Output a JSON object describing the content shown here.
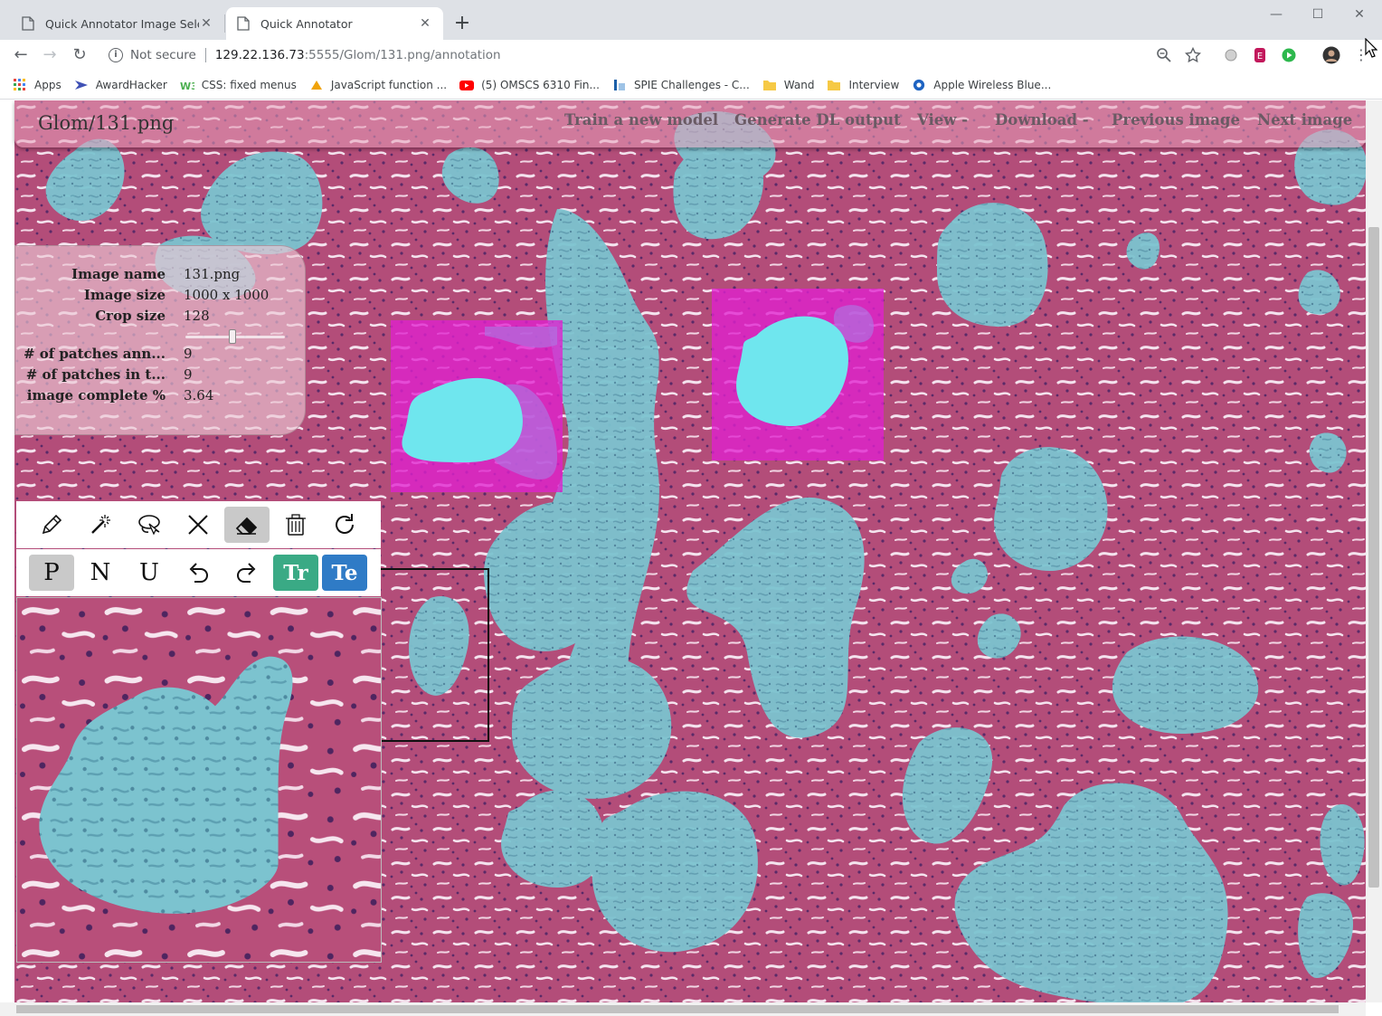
{
  "browser": {
    "tabs": [
      {
        "title": "Quick Annotator Image Selection",
        "active": false
      },
      {
        "title": "Quick Annotator",
        "active": true
      }
    ],
    "new_tab_glyph": "+",
    "window_controls": [
      "minimize-icon",
      "maximize-icon",
      "close-icon"
    ],
    "security_label": "Not secure",
    "url_host": "129.22.136.73",
    "url_rest": ":5555/Glom/131.png/annotation",
    "bookmarks": [
      {
        "label": "Apps",
        "icon": "apps-grid-icon"
      },
      {
        "label": "AwardHacker",
        "icon": "awardhacker-icon"
      },
      {
        "label": "CSS: fixed menus",
        "icon": "w3schools-icon"
      },
      {
        "label": "JavaScript function ...",
        "icon": "javascript-icon"
      },
      {
        "label": "(5) OMSCS 6310 Fin...",
        "icon": "youtube-icon"
      },
      {
        "label": "SPIE Challenges - C...",
        "icon": "spie-icon"
      },
      {
        "label": "Wand",
        "icon": "folder-icon"
      },
      {
        "label": "Interview",
        "icon": "folder-icon"
      },
      {
        "label": "Apple Wireless Blue...",
        "icon": "bluetooth-icon"
      }
    ]
  },
  "navbar": {
    "title": "Glom/131.png",
    "links": [
      "Train a new model",
      "Generate DL output",
      "View -",
      "Download -",
      "Previous image",
      "Next image"
    ]
  },
  "info": {
    "rows": [
      {
        "label": "Image name",
        "value": "131.png"
      },
      {
        "label": "Image size",
        "value": "1000 x 1000"
      },
      {
        "label": "Crop size",
        "value": "128"
      },
      {
        "label": "# of patches ann...",
        "value": "9"
      },
      {
        "label": "# of patches in t...",
        "value": "9"
      },
      {
        "label": "image complete %",
        "value": "3.64"
      }
    ],
    "crop_slider_fraction": 0.47
  },
  "tools": {
    "row1": [
      {
        "icon": "pencil-icon",
        "selected": false
      },
      {
        "icon": "magic-wand-icon",
        "selected": false
      },
      {
        "icon": "lasso-icon",
        "selected": false
      },
      {
        "icon": "close-x-icon",
        "selected": false
      },
      {
        "icon": "eraser-icon",
        "selected": true
      },
      {
        "icon": "trash-icon",
        "selected": false
      },
      {
        "icon": "refresh-icon",
        "selected": false
      }
    ],
    "row2": [
      {
        "label": "P",
        "selected": true
      },
      {
        "label": "N",
        "selected": false
      },
      {
        "label": "U",
        "selected": false
      },
      {
        "label": "undo",
        "icon": "undo-icon"
      },
      {
        "label": "redo",
        "icon": "redo-icon"
      },
      {
        "label": "Tr",
        "color": "#3aaa85"
      },
      {
        "label": "Te",
        "color": "#2f7bc6"
      }
    ]
  },
  "colors": {
    "tissue": "#b84f7a",
    "glomerulus_overlay": "#7fc4cf",
    "annotated_patch": "#e020d0",
    "navbar_bg": "#e8a0ba",
    "train_button": "#3aaa85",
    "test_button": "#2f7bc6"
  }
}
